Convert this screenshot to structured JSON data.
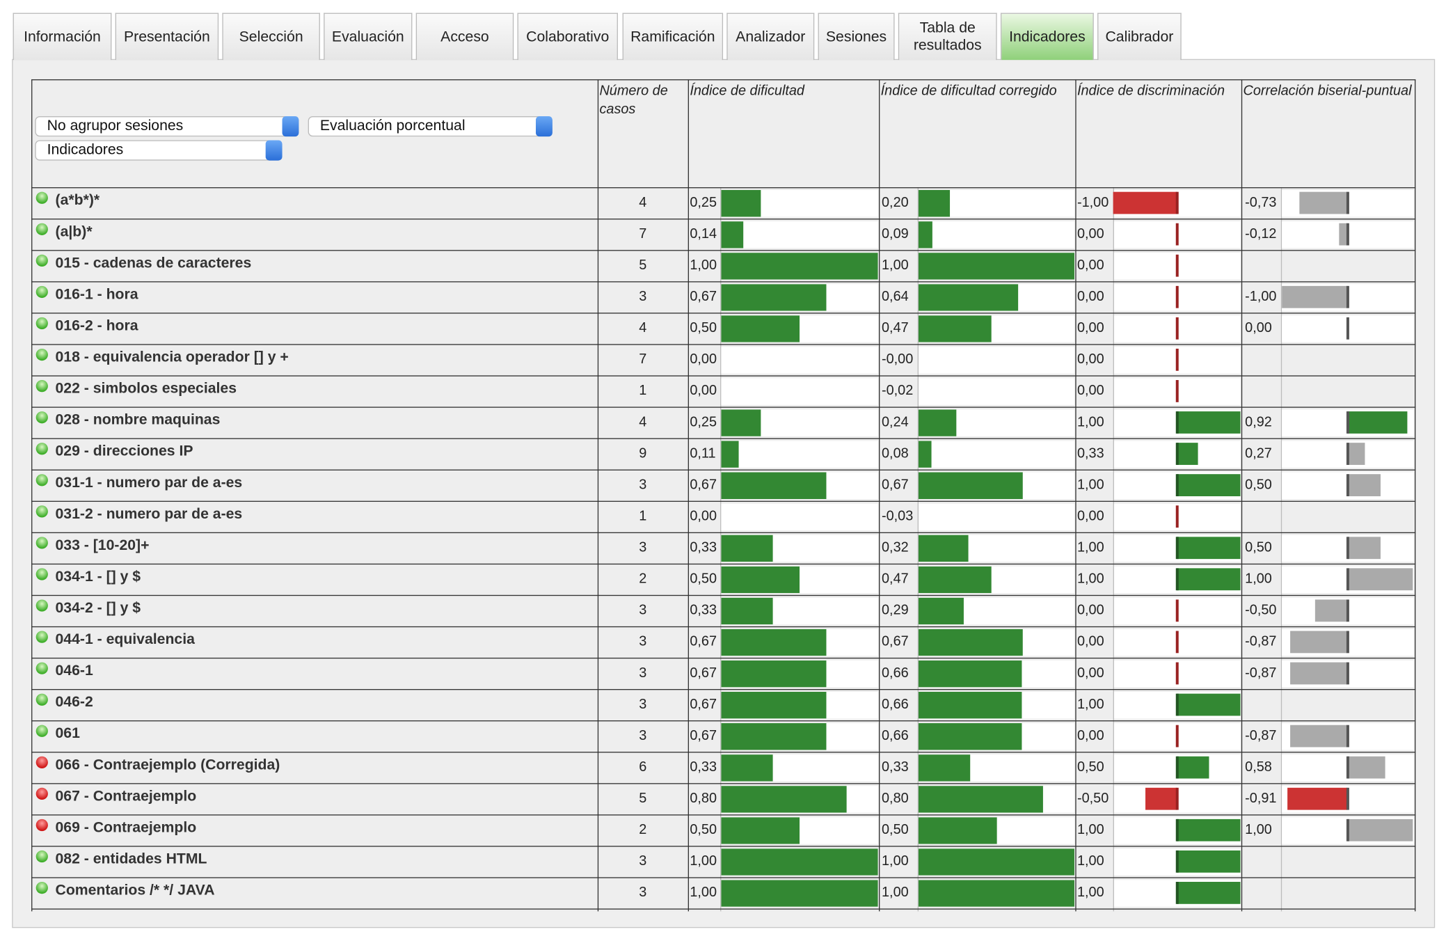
{
  "tabs": [
    "Información",
    "Presentación",
    "Selección",
    "Evaluación",
    "Acceso",
    "Colaborativo",
    "Ramificación",
    "Analizador",
    "Sesiones",
    "Tabla de resultados",
    "Indicadores",
    "Calibrador"
  ],
  "active_tab": 10,
  "filters": [
    "No agrupor sesiones",
    "Evaluación porcentual",
    "Indicadores"
  ],
  "table": {
    "headers": [
      "Número de casos",
      "Índice de dificultad",
      "Índice de dificultad corregido",
      "Índice de discriminación",
      "Correlación biserial-puntual"
    ],
    "rows": [
      {
        "status": "green",
        "name": "(a*b*)*",
        "cases": 4,
        "difficulty": {
          "value": 0.25,
          "label": "0,25"
        },
        "corrected": {
          "value": 0.2,
          "label": "0,20"
        },
        "discrimination": {
          "value": -1,
          "label": "-1,00"
        },
        "correlation": {
          "value": -0.73,
          "label": "-0,73",
          "color": "#aaaaaa"
        }
      },
      {
        "status": "green",
        "name": "(a|b)*",
        "cases": 7,
        "difficulty": {
          "value": 0.14,
          "label": "0,14"
        },
        "corrected": {
          "value": 0.09,
          "label": "0,09"
        },
        "discrimination": {
          "value": 0,
          "label": "0,00"
        },
        "correlation": {
          "value": -0.12,
          "label": "-0,12",
          "color": "#aaaaaa"
        }
      },
      {
        "status": "green",
        "name": "015 - cadenas de caracteres",
        "cases": 5,
        "difficulty": {
          "value": 1,
          "label": "1,00"
        },
        "corrected": {
          "value": 1,
          "label": "1,00"
        },
        "discrimination": {
          "value": 0,
          "label": "0,00"
        },
        "correlation": null
      },
      {
        "status": "green",
        "name": "016-1 - hora",
        "cases": 3,
        "difficulty": {
          "value": 0.67,
          "label": "0,67"
        },
        "corrected": {
          "value": 0.64,
          "label": "0,64"
        },
        "discrimination": {
          "value": 0,
          "label": "0,00"
        },
        "correlation": {
          "value": -1,
          "label": "-1,00",
          "color": "#aaaaaa"
        }
      },
      {
        "status": "green",
        "name": "016-2 - hora",
        "cases": 4,
        "difficulty": {
          "value": 0.5,
          "label": "0,50"
        },
        "corrected": {
          "value": 0.47,
          "label": "0,47"
        },
        "discrimination": {
          "value": 0,
          "label": "0,00"
        },
        "correlation": {
          "value": 0,
          "label": "0,00",
          "color": "#aaaaaa"
        }
      },
      {
        "status": "green",
        "name": "018 - equivalencia operador [] y +",
        "cases": 7,
        "difficulty": {
          "value": 0,
          "label": "0,00"
        },
        "corrected": {
          "value": 0,
          "label": "-0,00"
        },
        "discrimination": {
          "value": 0,
          "label": "0,00"
        },
        "correlation": null
      },
      {
        "status": "green",
        "name": "022 - simbolos especiales",
        "cases": 1,
        "difficulty": {
          "value": 0,
          "label": "0,00"
        },
        "corrected": {
          "value": -0.02,
          "label": "-0,02"
        },
        "discrimination": {
          "value": 0,
          "label": "0,00"
        },
        "correlation": null
      },
      {
        "status": "green",
        "name": "028 - nombre maquinas",
        "cases": 4,
        "difficulty": {
          "value": 0.25,
          "label": "0,25"
        },
        "corrected": {
          "value": 0.24,
          "label": "0,24"
        },
        "discrimination": {
          "value": 1,
          "label": "1,00"
        },
        "correlation": {
          "value": 0.92,
          "label": "0,92",
          "color": "#338833"
        }
      },
      {
        "status": "green",
        "name": "029 - direcciones IP",
        "cases": 9,
        "difficulty": {
          "value": 0.11,
          "label": "0,11"
        },
        "corrected": {
          "value": 0.08,
          "label": "0,08"
        },
        "discrimination": {
          "value": 0.33,
          "label": "0,33"
        },
        "correlation": {
          "value": 0.27,
          "label": "0,27",
          "color": "#aaaaaa"
        }
      },
      {
        "status": "green",
        "name": "031-1 - numero par de a-es",
        "cases": 3,
        "difficulty": {
          "value": 0.67,
          "label": "0,67"
        },
        "corrected": {
          "value": 0.67,
          "label": "0,67"
        },
        "discrimination": {
          "value": 1,
          "label": "1,00"
        },
        "correlation": {
          "value": 0.5,
          "label": "0,50",
          "color": "#aaaaaa"
        }
      },
      {
        "status": "green",
        "name": "031-2 - numero par de a-es",
        "cases": 1,
        "difficulty": {
          "value": 0,
          "label": "0,00"
        },
        "corrected": {
          "value": -0.03,
          "label": "-0,03"
        },
        "discrimination": {
          "value": 0,
          "label": "0,00"
        },
        "correlation": null
      },
      {
        "status": "green",
        "name": "033 - [10-20]+",
        "cases": 3,
        "difficulty": {
          "value": 0.33,
          "label": "0,33"
        },
        "corrected": {
          "value": 0.32,
          "label": "0,32"
        },
        "discrimination": {
          "value": 1,
          "label": "1,00"
        },
        "correlation": {
          "value": 0.5,
          "label": "0,50",
          "color": "#aaaaaa"
        }
      },
      {
        "status": "green",
        "name": "034-1 - [] y $",
        "cases": 2,
        "difficulty": {
          "value": 0.5,
          "label": "0,50"
        },
        "corrected": {
          "value": 0.47,
          "label": "0,47"
        },
        "discrimination": {
          "value": 1,
          "label": "1,00"
        },
        "correlation": {
          "value": 1,
          "label": "1,00",
          "color": "#aaaaaa"
        }
      },
      {
        "status": "green",
        "name": "034-2 - [] y $",
        "cases": 3,
        "difficulty": {
          "value": 0.33,
          "label": "0,33"
        },
        "corrected": {
          "value": 0.29,
          "label": "0,29"
        },
        "discrimination": {
          "value": 0,
          "label": "0,00"
        },
        "correlation": {
          "value": -0.5,
          "label": "-0,50",
          "color": "#aaaaaa"
        }
      },
      {
        "status": "green",
        "name": "044-1 - equivalencia",
        "cases": 3,
        "difficulty": {
          "value": 0.67,
          "label": "0,67"
        },
        "corrected": {
          "value": 0.67,
          "label": "0,67"
        },
        "discrimination": {
          "value": 0,
          "label": "0,00"
        },
        "correlation": {
          "value": -0.87,
          "label": "-0,87",
          "color": "#aaaaaa"
        }
      },
      {
        "status": "green",
        "name": "046-1",
        "cases": 3,
        "difficulty": {
          "value": 0.67,
          "label": "0,67"
        },
        "corrected": {
          "value": 0.66,
          "label": "0,66"
        },
        "discrimination": {
          "value": 0,
          "label": "0,00"
        },
        "correlation": {
          "value": -0.87,
          "label": "-0,87",
          "color": "#aaaaaa"
        }
      },
      {
        "status": "green",
        "name": "046-2",
        "cases": 3,
        "difficulty": {
          "value": 0.67,
          "label": "0,67"
        },
        "corrected": {
          "value": 0.66,
          "label": "0,66"
        },
        "discrimination": {
          "value": 1,
          "label": "1,00"
        },
        "correlation": null
      },
      {
        "status": "green",
        "name": "061",
        "cases": 3,
        "difficulty": {
          "value": 0.67,
          "label": "0,67"
        },
        "corrected": {
          "value": 0.66,
          "label": "0,66"
        },
        "discrimination": {
          "value": 0,
          "label": "0,00"
        },
        "correlation": {
          "value": -0.87,
          "label": "-0,87",
          "color": "#aaaaaa"
        }
      },
      {
        "status": "red",
        "name": "066 - Contraejemplo (Corregida)",
        "cases": 6,
        "difficulty": {
          "value": 0.33,
          "label": "0,33"
        },
        "corrected": {
          "value": 0.33,
          "label": "0,33"
        },
        "discrimination": {
          "value": 0.5,
          "label": "0,50"
        },
        "correlation": {
          "value": 0.58,
          "label": "0,58",
          "color": "#aaaaaa"
        }
      },
      {
        "status": "red",
        "name": "067 - Contraejemplo",
        "cases": 5,
        "difficulty": {
          "value": 0.8,
          "label": "0,80"
        },
        "corrected": {
          "value": 0.8,
          "label": "0,80"
        },
        "discrimination": {
          "value": -0.5,
          "label": "-0,50"
        },
        "correlation": {
          "value": -0.91,
          "label": "-0,91",
          "color": "#cc3333"
        }
      },
      {
        "status": "red",
        "name": "069 - Contraejemplo",
        "cases": 2,
        "difficulty": {
          "value": 0.5,
          "label": "0,50"
        },
        "corrected": {
          "value": 0.5,
          "label": "0,50"
        },
        "discrimination": {
          "value": 1,
          "label": "1,00"
        },
        "correlation": {
          "value": 1,
          "label": "1,00",
          "color": "#aaaaaa"
        }
      },
      {
        "status": "green",
        "name": "082 - entidades HTML",
        "cases": 3,
        "difficulty": {
          "value": 1,
          "label": "1,00"
        },
        "corrected": {
          "value": 1,
          "label": "1,00"
        },
        "discrimination": {
          "value": 1,
          "label": "1,00"
        },
        "correlation": null
      },
      {
        "status": "green",
        "name": "Comentarios /* */ JAVA",
        "cases": 3,
        "difficulty": {
          "value": 1,
          "label": "1,00"
        },
        "corrected": {
          "value": 1,
          "label": "1,00"
        },
        "discrimination": {
          "value": 1,
          "label": "1,00"
        },
        "correlation": null
      }
    ]
  }
}
